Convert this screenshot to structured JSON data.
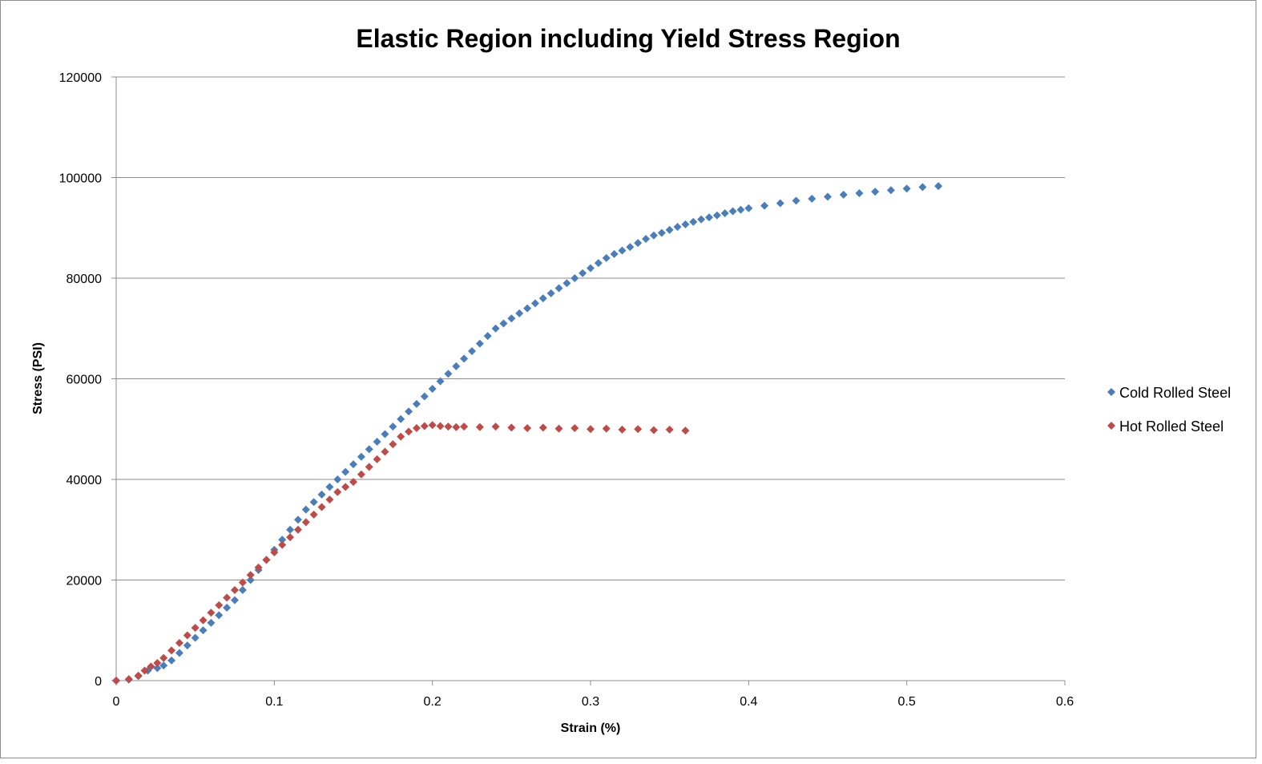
{
  "chart_data": {
    "type": "scatter",
    "title": "Elastic Region including Yield Stress Region",
    "xlabel": "Strain (%)",
    "ylabel": "Stress (PSI)",
    "xlim": [
      0,
      0.6
    ],
    "ylim": [
      0,
      120000
    ],
    "x_ticks": [
      "0",
      "0.1",
      "0.2",
      "0.3",
      "0.4",
      "0.5",
      "0.6"
    ],
    "y_ticks": [
      "0",
      "20000",
      "40000",
      "60000",
      "80000",
      "100000",
      "120000"
    ],
    "grid": "horizontal",
    "legend_position": "right",
    "series": [
      {
        "name": "Cold Rolled Steel",
        "color": "#4a7ebb",
        "marker": "diamond",
        "points": [
          [
            0,
            0
          ],
          [
            0.008,
            200
          ],
          [
            0.014,
            900
          ],
          [
            0.02,
            2000
          ],
          [
            0.026,
            2500
          ],
          [
            0.03,
            3000
          ],
          [
            0.035,
            4000
          ],
          [
            0.04,
            5500
          ],
          [
            0.045,
            7000
          ],
          [
            0.05,
            8500
          ],
          [
            0.055,
            10000
          ],
          [
            0.06,
            11500
          ],
          [
            0.065,
            13000
          ],
          [
            0.07,
            14500
          ],
          [
            0.075,
            16000
          ],
          [
            0.08,
            18000
          ],
          [
            0.085,
            20000
          ],
          [
            0.09,
            22000
          ],
          [
            0.095,
            24000
          ],
          [
            0.1,
            26000
          ],
          [
            0.105,
            28000
          ],
          [
            0.11,
            30000
          ],
          [
            0.115,
            32000
          ],
          [
            0.12,
            34000
          ],
          [
            0.125,
            35500
          ],
          [
            0.13,
            37000
          ],
          [
            0.135,
            38500
          ],
          [
            0.14,
            40000
          ],
          [
            0.145,
            41500
          ],
          [
            0.15,
            43000
          ],
          [
            0.155,
            44500
          ],
          [
            0.16,
            46000
          ],
          [
            0.165,
            47500
          ],
          [
            0.17,
            49000
          ],
          [
            0.175,
            50500
          ],
          [
            0.18,
            52000
          ],
          [
            0.185,
            53500
          ],
          [
            0.19,
            55000
          ],
          [
            0.195,
            56500
          ],
          [
            0.2,
            58000
          ],
          [
            0.205,
            59500
          ],
          [
            0.21,
            61000
          ],
          [
            0.215,
            62500
          ],
          [
            0.22,
            64000
          ],
          [
            0.225,
            65500
          ],
          [
            0.23,
            67000
          ],
          [
            0.235,
            68500
          ],
          [
            0.24,
            70000
          ],
          [
            0.245,
            71000
          ],
          [
            0.25,
            72000
          ],
          [
            0.255,
            73000
          ],
          [
            0.26,
            74000
          ],
          [
            0.265,
            75000
          ],
          [
            0.27,
            76000
          ],
          [
            0.275,
            77000
          ],
          [
            0.28,
            78000
          ],
          [
            0.285,
            79000
          ],
          [
            0.29,
            80000
          ],
          [
            0.295,
            81000
          ],
          [
            0.3,
            82000
          ],
          [
            0.305,
            83000
          ],
          [
            0.31,
            84000
          ],
          [
            0.315,
            84800
          ],
          [
            0.32,
            85500
          ],
          [
            0.325,
            86200
          ],
          [
            0.33,
            87000
          ],
          [
            0.335,
            87800
          ],
          [
            0.34,
            88500
          ],
          [
            0.345,
            89000
          ],
          [
            0.35,
            89600
          ],
          [
            0.355,
            90200
          ],
          [
            0.36,
            90700
          ],
          [
            0.365,
            91200
          ],
          [
            0.37,
            91700
          ],
          [
            0.375,
            92100
          ],
          [
            0.38,
            92500
          ],
          [
            0.385,
            92900
          ],
          [
            0.39,
            93300
          ],
          [
            0.395,
            93600
          ],
          [
            0.4,
            93900
          ],
          [
            0.41,
            94400
          ],
          [
            0.42,
            94900
          ],
          [
            0.43,
            95400
          ],
          [
            0.44,
            95800
          ],
          [
            0.45,
            96200
          ],
          [
            0.46,
            96600
          ],
          [
            0.47,
            96900
          ],
          [
            0.48,
            97200
          ],
          [
            0.49,
            97500
          ],
          [
            0.5,
            97800
          ],
          [
            0.51,
            98100
          ],
          [
            0.52,
            98300
          ]
        ]
      },
      {
        "name": "Hot Rolled Steel",
        "color": "#be4b48",
        "marker": "diamond",
        "points": [
          [
            0,
            0
          ],
          [
            0.008,
            300
          ],
          [
            0.014,
            1000
          ],
          [
            0.018,
            2000
          ],
          [
            0.022,
            2800
          ],
          [
            0.026,
            3500
          ],
          [
            0.03,
            4500
          ],
          [
            0.035,
            6000
          ],
          [
            0.04,
            7500
          ],
          [
            0.045,
            9000
          ],
          [
            0.05,
            10500
          ],
          [
            0.055,
            12000
          ],
          [
            0.06,
            13500
          ],
          [
            0.065,
            15000
          ],
          [
            0.07,
            16500
          ],
          [
            0.075,
            18000
          ],
          [
            0.08,
            19500
          ],
          [
            0.085,
            21000
          ],
          [
            0.09,
            22500
          ],
          [
            0.095,
            24000
          ],
          [
            0.1,
            25500
          ],
          [
            0.105,
            27000
          ],
          [
            0.11,
            28500
          ],
          [
            0.115,
            30000
          ],
          [
            0.12,
            31500
          ],
          [
            0.125,
            33000
          ],
          [
            0.13,
            34500
          ],
          [
            0.135,
            36000
          ],
          [
            0.14,
            37500
          ],
          [
            0.145,
            38500
          ],
          [
            0.15,
            39500
          ],
          [
            0.155,
            41000
          ],
          [
            0.16,
            42500
          ],
          [
            0.165,
            44000
          ],
          [
            0.17,
            45500
          ],
          [
            0.175,
            47000
          ],
          [
            0.18,
            48500
          ],
          [
            0.185,
            49500
          ],
          [
            0.19,
            50200
          ],
          [
            0.195,
            50600
          ],
          [
            0.2,
            50800
          ],
          [
            0.205,
            50600
          ],
          [
            0.21,
            50500
          ],
          [
            0.215,
            50400
          ],
          [
            0.22,
            50500
          ],
          [
            0.23,
            50400
          ],
          [
            0.24,
            50500
          ],
          [
            0.25,
            50300
          ],
          [
            0.26,
            50200
          ],
          [
            0.27,
            50300
          ],
          [
            0.28,
            50100
          ],
          [
            0.29,
            50200
          ],
          [
            0.3,
            50000
          ],
          [
            0.31,
            50100
          ],
          [
            0.32,
            49900
          ],
          [
            0.33,
            50000
          ],
          [
            0.34,
            49800
          ],
          [
            0.35,
            49900
          ],
          [
            0.36,
            49700
          ]
        ]
      }
    ]
  }
}
